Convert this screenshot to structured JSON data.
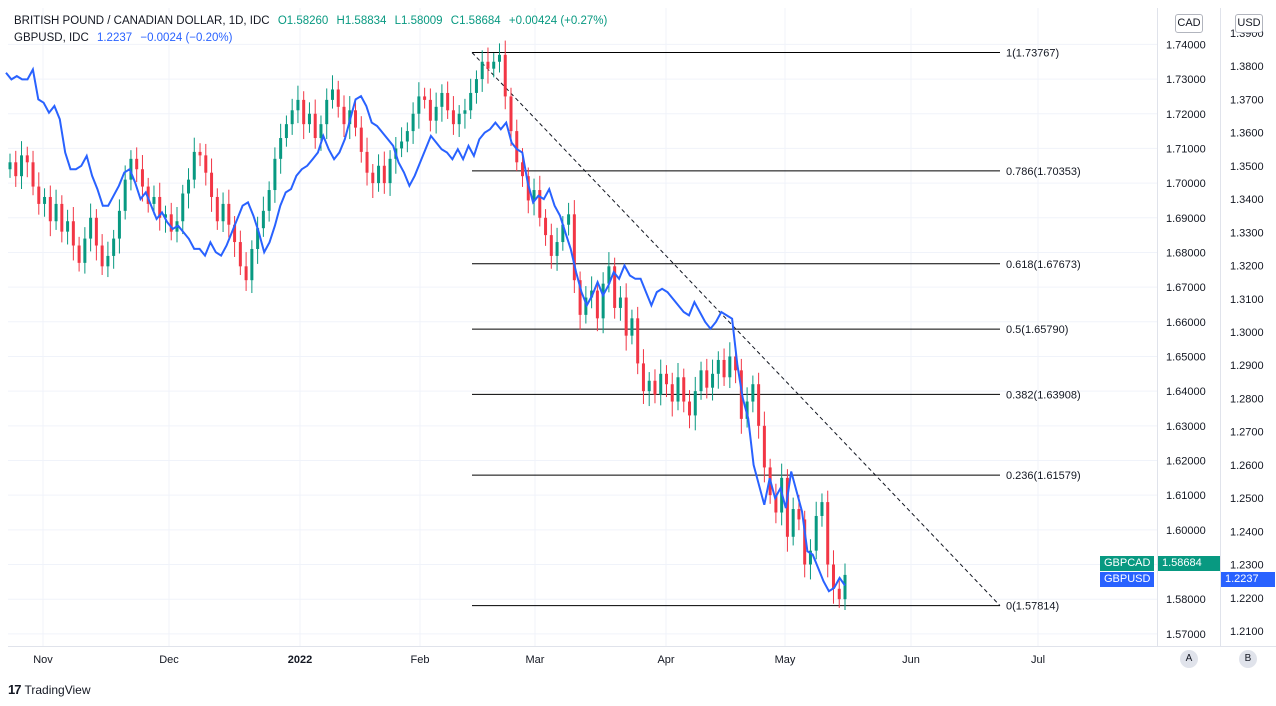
{
  "header": {
    "series1": {
      "title": "BRITISH POUND / CANADIAN DOLLAR, 1D, IDC",
      "open": "O1.58260",
      "high": "H1.58834",
      "low": "L1.58009",
      "close": "C1.58684",
      "change": "+0.00424 (+0.27%)"
    },
    "series2": {
      "title": "GBPUSD, IDC",
      "value": "1.2237",
      "change": "−0.0024 (−0.20%)"
    }
  },
  "scales": {
    "left_unit": "CAD",
    "right_unit": "USD",
    "btn_a": "A",
    "btn_b": "B"
  },
  "logo": {
    "name": "TradingView"
  },
  "tags": {
    "gbpcad_label": "GBPCAD",
    "gbpcad_value": "1.58684",
    "gbpusd_label": "GBPUSD",
    "gbpusd_value": "1.2237"
  },
  "colors": {
    "up": "#089981",
    "down": "#f23645",
    "line": "#2962ff",
    "fib": "#000000"
  },
  "chart_data": {
    "type": "line",
    "x_ticks": [
      "Nov",
      "Dec",
      "2022",
      "Feb",
      "Mar",
      "Apr",
      "May",
      "Jun",
      "Jul"
    ],
    "y_cad_ticks": [
      "1.74000",
      "1.73000",
      "1.72000",
      "1.71000",
      "1.70000",
      "1.69000",
      "1.68000",
      "1.67000",
      "1.66000",
      "1.65000",
      "1.64000",
      "1.63000",
      "1.62000",
      "1.61000",
      "1.60000",
      "1.59000",
      "1.58000",
      "1.57000"
    ],
    "y_usd_ticks": [
      "1.3900",
      "1.3800",
      "1.3700",
      "1.3600",
      "1.3500",
      "1.3400",
      "1.3300",
      "1.3200",
      "1.3100",
      "1.3000",
      "1.2900",
      "1.2800",
      "1.2700",
      "1.2600",
      "1.2500",
      "1.2400",
      "1.2300",
      "1.2200",
      "1.2100"
    ],
    "y_cad_range": [
      1.5665,
      1.7505
    ],
    "y_usd_range": [
      1.2055,
      1.3975
    ],
    "fib_levels": [
      {
        "label": "1(1.73767)",
        "value": 1.73767
      },
      {
        "label": "0.786(1.70353)",
        "value": 1.70353
      },
      {
        "label": "0.618(1.67673)",
        "value": 1.67673
      },
      {
        "label": "0.5(1.65790)",
        "value": 1.6579
      },
      {
        "label": "0.382(1.63908)",
        "value": 1.63908
      },
      {
        "label": "0.236(1.61579)",
        "value": 1.61579
      },
      {
        "label": "0(1.57814)",
        "value": 1.57814
      }
    ],
    "gbpcad_close": [
      1.706,
      1.702,
      1.708,
      1.706,
      1.699,
      1.694,
      1.696,
      1.689,
      1.694,
      1.686,
      1.689,
      1.682,
      1.677,
      1.684,
      1.69,
      1.682,
      1.676,
      1.679,
      1.684,
      1.692,
      1.701,
      1.707,
      1.704,
      1.699,
      1.694,
      1.696,
      1.69,
      1.691,
      1.686,
      1.689,
      1.697,
      1.701,
      1.709,
      1.708,
      1.703,
      1.696,
      1.689,
      1.694,
      1.688,
      1.683,
      1.676,
      1.672,
      1.681,
      1.687,
      1.692,
      1.698,
      1.707,
      1.713,
      1.717,
      1.721,
      1.724,
      1.717,
      1.72,
      1.713,
      1.717,
      1.724,
      1.727,
      1.722,
      1.717,
      1.721,
      1.716,
      1.709,
      1.703,
      1.7,
      1.705,
      1.7,
      1.707,
      1.71,
      1.712,
      1.715,
      1.72,
      1.725,
      1.724,
      1.718,
      1.722,
      1.726,
      1.721,
      1.717,
      1.72,
      1.721,
      1.726,
      1.73,
      1.735,
      1.733,
      1.735,
      1.737,
      1.725,
      1.715,
      1.706,
      1.702,
      1.695,
      1.698,
      1.69,
      1.685,
      1.679,
      1.683,
      1.688,
      1.691,
      1.672,
      1.662,
      1.667,
      1.669,
      1.661,
      1.671,
      1.676,
      1.664,
      1.667,
      1.656,
      1.661,
      1.648,
      1.64,
      1.643,
      1.639,
      1.645,
      1.642,
      1.637,
      1.644,
      1.637,
      1.633,
      1.64,
      1.646,
      1.641,
      1.645,
      1.649,
      1.644,
      1.65,
      1.646,
      1.632,
      1.637,
      1.642,
      1.63,
      1.618,
      1.61,
      1.605,
      1.615,
      1.598,
      1.606,
      1.603,
      1.59,
      1.594,
      1.604,
      1.608,
      1.59,
      1.583,
      1.58,
      1.587
    ],
    "gbpusd_close": [
      1.378,
      1.376,
      1.377,
      1.376,
      1.376,
      1.379,
      1.37,
      1.369,
      1.366,
      1.368,
      1.364,
      1.354,
      1.349,
      1.349,
      1.35,
      1.353,
      1.347,
      1.343,
      1.338,
      1.338,
      1.341,
      1.344,
      1.348,
      1.349,
      1.345,
      1.34,
      1.342,
      1.338,
      1.334,
      1.336,
      1.333,
      1.331,
      1.332,
      1.33,
      1.328,
      1.325,
      1.325,
      1.323,
      1.327,
      1.324,
      1.323,
      1.326,
      1.33,
      1.334,
      1.338,
      1.339,
      1.335,
      1.33,
      1.324,
      1.327,
      1.332,
      1.338,
      1.342,
      1.343,
      1.347,
      1.349,
      1.35,
      1.352,
      1.354,
      1.359,
      1.355,
      1.352,
      1.354,
      1.358,
      1.364,
      1.37,
      1.371,
      1.368,
      1.363,
      1.362,
      1.36,
      1.358,
      1.356,
      1.351,
      1.348,
      1.344,
      1.347,
      1.351,
      1.355,
      1.359,
      1.357,
      1.355,
      1.354,
      1.352,
      1.355,
      1.352,
      1.356,
      1.353,
      1.358,
      1.36,
      1.361,
      1.363,
      1.361,
      1.363,
      1.357,
      1.355,
      1.354,
      1.345,
      1.339,
      1.341,
      1.34,
      1.343,
      1.338,
      1.335,
      1.33,
      1.325,
      1.318,
      1.312,
      1.308,
      1.311,
      1.315,
      1.311,
      1.314,
      1.318,
      1.316,
      1.32,
      1.317,
      1.316,
      1.316,
      1.312,
      1.308,
      1.312,
      1.313,
      1.312,
      1.31,
      1.308,
      1.306,
      1.305,
      1.309,
      1.306,
      1.303,
      1.301,
      1.303,
      1.306,
      1.305,
      1.304,
      1.29,
      1.28,
      1.274,
      1.26,
      1.254,
      1.248,
      1.256,
      1.25,
      1.253,
      1.247,
      1.258,
      1.252,
      1.246,
      1.234,
      1.233,
      1.229,
      1.225,
      1.222,
      1.223,
      1.226,
      1.2237
    ]
  }
}
